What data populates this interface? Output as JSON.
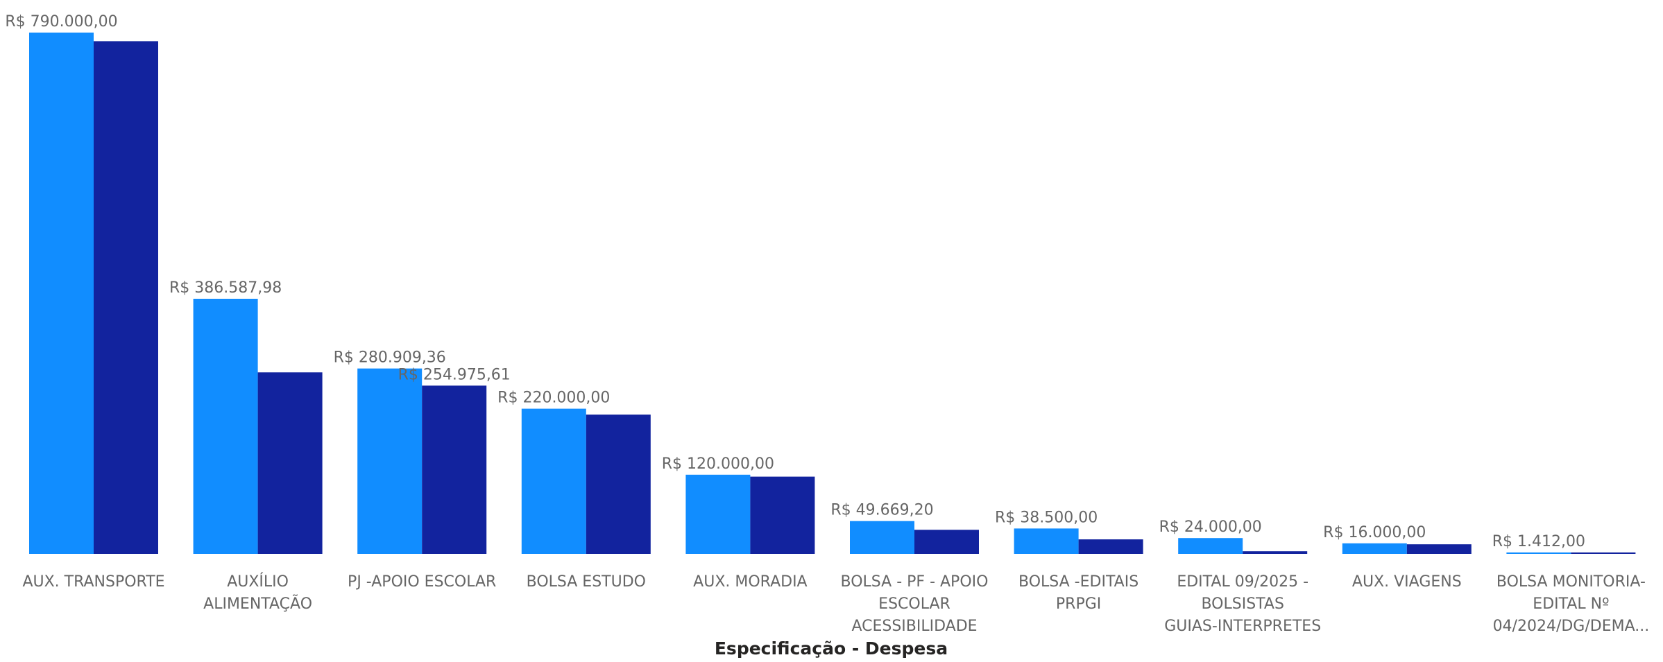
{
  "chart_data": {
    "type": "bar",
    "xlabel": "Especificação - Despesa",
    "ylabel": "",
    "ylim": [
      0,
      790000
    ],
    "grid": false,
    "legend": "none",
    "colors": [
      "#118DFF",
      "#12239E"
    ],
    "categories": [
      [
        "AUX. TRANSPORTE"
      ],
      [
        "AUXÍLIO",
        "ALIMENTAÇÃO"
      ],
      [
        "PJ -APOIO ESCOLAR"
      ],
      [
        "BOLSA ESTUDO"
      ],
      [
        "AUX. MORADIA"
      ],
      [
        "BOLSA - PF - APOIO",
        "ESCOLAR",
        "ACESSIBILIDADE"
      ],
      [
        "BOLSA -EDITAIS",
        "PRPGI"
      ],
      [
        "EDITAL 09/2025 -",
        "BOLSISTAS",
        "GUIAS-INTERPRETES"
      ],
      [
        "AUX. VIAGENS"
      ],
      [
        "BOLSA MONITORIA-",
        "EDITAL Nº",
        "04/2024/DG/DEMA..."
      ]
    ],
    "series": [
      {
        "values": [
          790000,
          386587.98,
          280909.36,
          220000,
          120000,
          49669.2,
          38500,
          24000,
          16000,
          1412
        ],
        "labels": [
          "R$ 790.000,00",
          "R$ 386.587,98",
          "R$ 280.909,36",
          "R$ 220.000,00",
          "R$ 120.000,00",
          "R$ 49.669,20",
          "R$ 38.500,00",
          "R$ 24.000,00",
          "R$ 16.000,00",
          "R$ 1.412,00"
        ]
      },
      {
        "values": [
          777000,
          275000,
          254975.61,
          211000,
          117000,
          36500,
          22000,
          4000,
          14500,
          1000
        ],
        "labels": [
          "",
          "",
          "R$ 254.975,61",
          "",
          "",
          "",
          "",
          "",
          "",
          ""
        ]
      }
    ]
  }
}
